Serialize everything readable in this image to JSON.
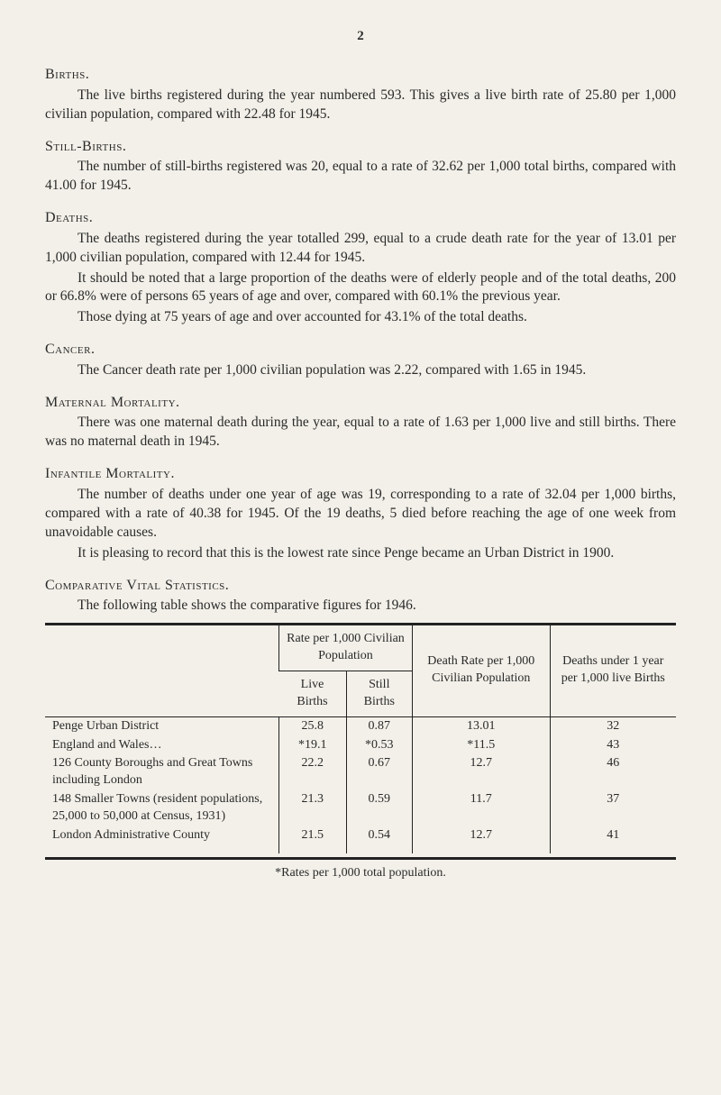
{
  "page_number": "2",
  "sections": {
    "births": {
      "heading": "Births.",
      "p1": "The live births registered during the year numbered 593. This gives a live birth rate of 25.80 per 1,000 civilian population, compared with 22.48 for 1945."
    },
    "still_births": {
      "heading": "Still-Births.",
      "p1": "The number of still-births registered was 20, equal to a rate of 32.62 per 1,000 total births, compared with 41.00 for 1945."
    },
    "deaths": {
      "heading": "Deaths.",
      "p1": "The deaths registered during the year totalled 299, equal to a crude death rate for the year of 13.01 per 1,000 civilian population, compared with 12.44 for 1945.",
      "p2": "It should be noted that a large proportion of the deaths were of elderly people and of the total deaths, 200 or 66.8% were of persons 65 years of age and over, compared with 60.1% the previous year.",
      "p3": "Those dying at 75 years of age and over accounted for 43.1% of the total deaths."
    },
    "cancer": {
      "heading": "Cancer.",
      "p1": "The Cancer death rate per 1,000 civilian population was 2.22, compared with 1.65 in 1945."
    },
    "maternal": {
      "heading": "Maternal Mortality.",
      "p1": "There was one maternal death during the year, equal to a rate of 1.63 per 1,000 live and still births. There was no maternal death in 1945."
    },
    "infantile": {
      "heading": "Infantile Mortality.",
      "p1": "The number of deaths under one year of age was 19, corresponding to a rate of 32.04 per 1,000 births, compared with a rate of 40.38 for 1945. Of the 19 deaths, 5 died before reaching the age of one week from unavoidable causes.",
      "p2": "It is pleasing to record that this is the lowest rate since Penge became an Urban District in 1900."
    },
    "comparative": {
      "heading": "Comparative Vital Statistics.",
      "p1": "The following table shows the comparative figures for 1946."
    }
  },
  "table": {
    "columns": {
      "col_blank": "",
      "col_rate_group": "Rate per 1,000 Civilian Population",
      "col_live": "Live Births",
      "col_still": "Still Births",
      "col_death_rate": "Death Rate per 1,000 Civilian Population",
      "col_deaths_under1": "Deaths under 1 year per 1,000 live Births"
    },
    "rows": [
      {
        "label": "Penge Urban District",
        "live": "25.8",
        "still": "0.87",
        "death": "13.01",
        "under1": "32"
      },
      {
        "label": "England and Wales…",
        "live": "*19.1",
        "still": "*0.53",
        "death": "*11.5",
        "under1": "43"
      },
      {
        "label": "126 County Boroughs and Great Towns including London",
        "live": "22.2",
        "still": "0.67",
        "death": "12.7",
        "under1": "46"
      },
      {
        "label": "148 Smaller Towns (resident populations, 25,000 to 50,000 at Census, 1931)",
        "live": "21.3",
        "still": "0.59",
        "death": "11.7",
        "under1": "37"
      },
      {
        "label": "London Administrative County",
        "live": "21.5",
        "still": "0.54",
        "death": "12.7",
        "under1": "41"
      }
    ]
  },
  "footnote": "*Rates per 1,000 total population."
}
